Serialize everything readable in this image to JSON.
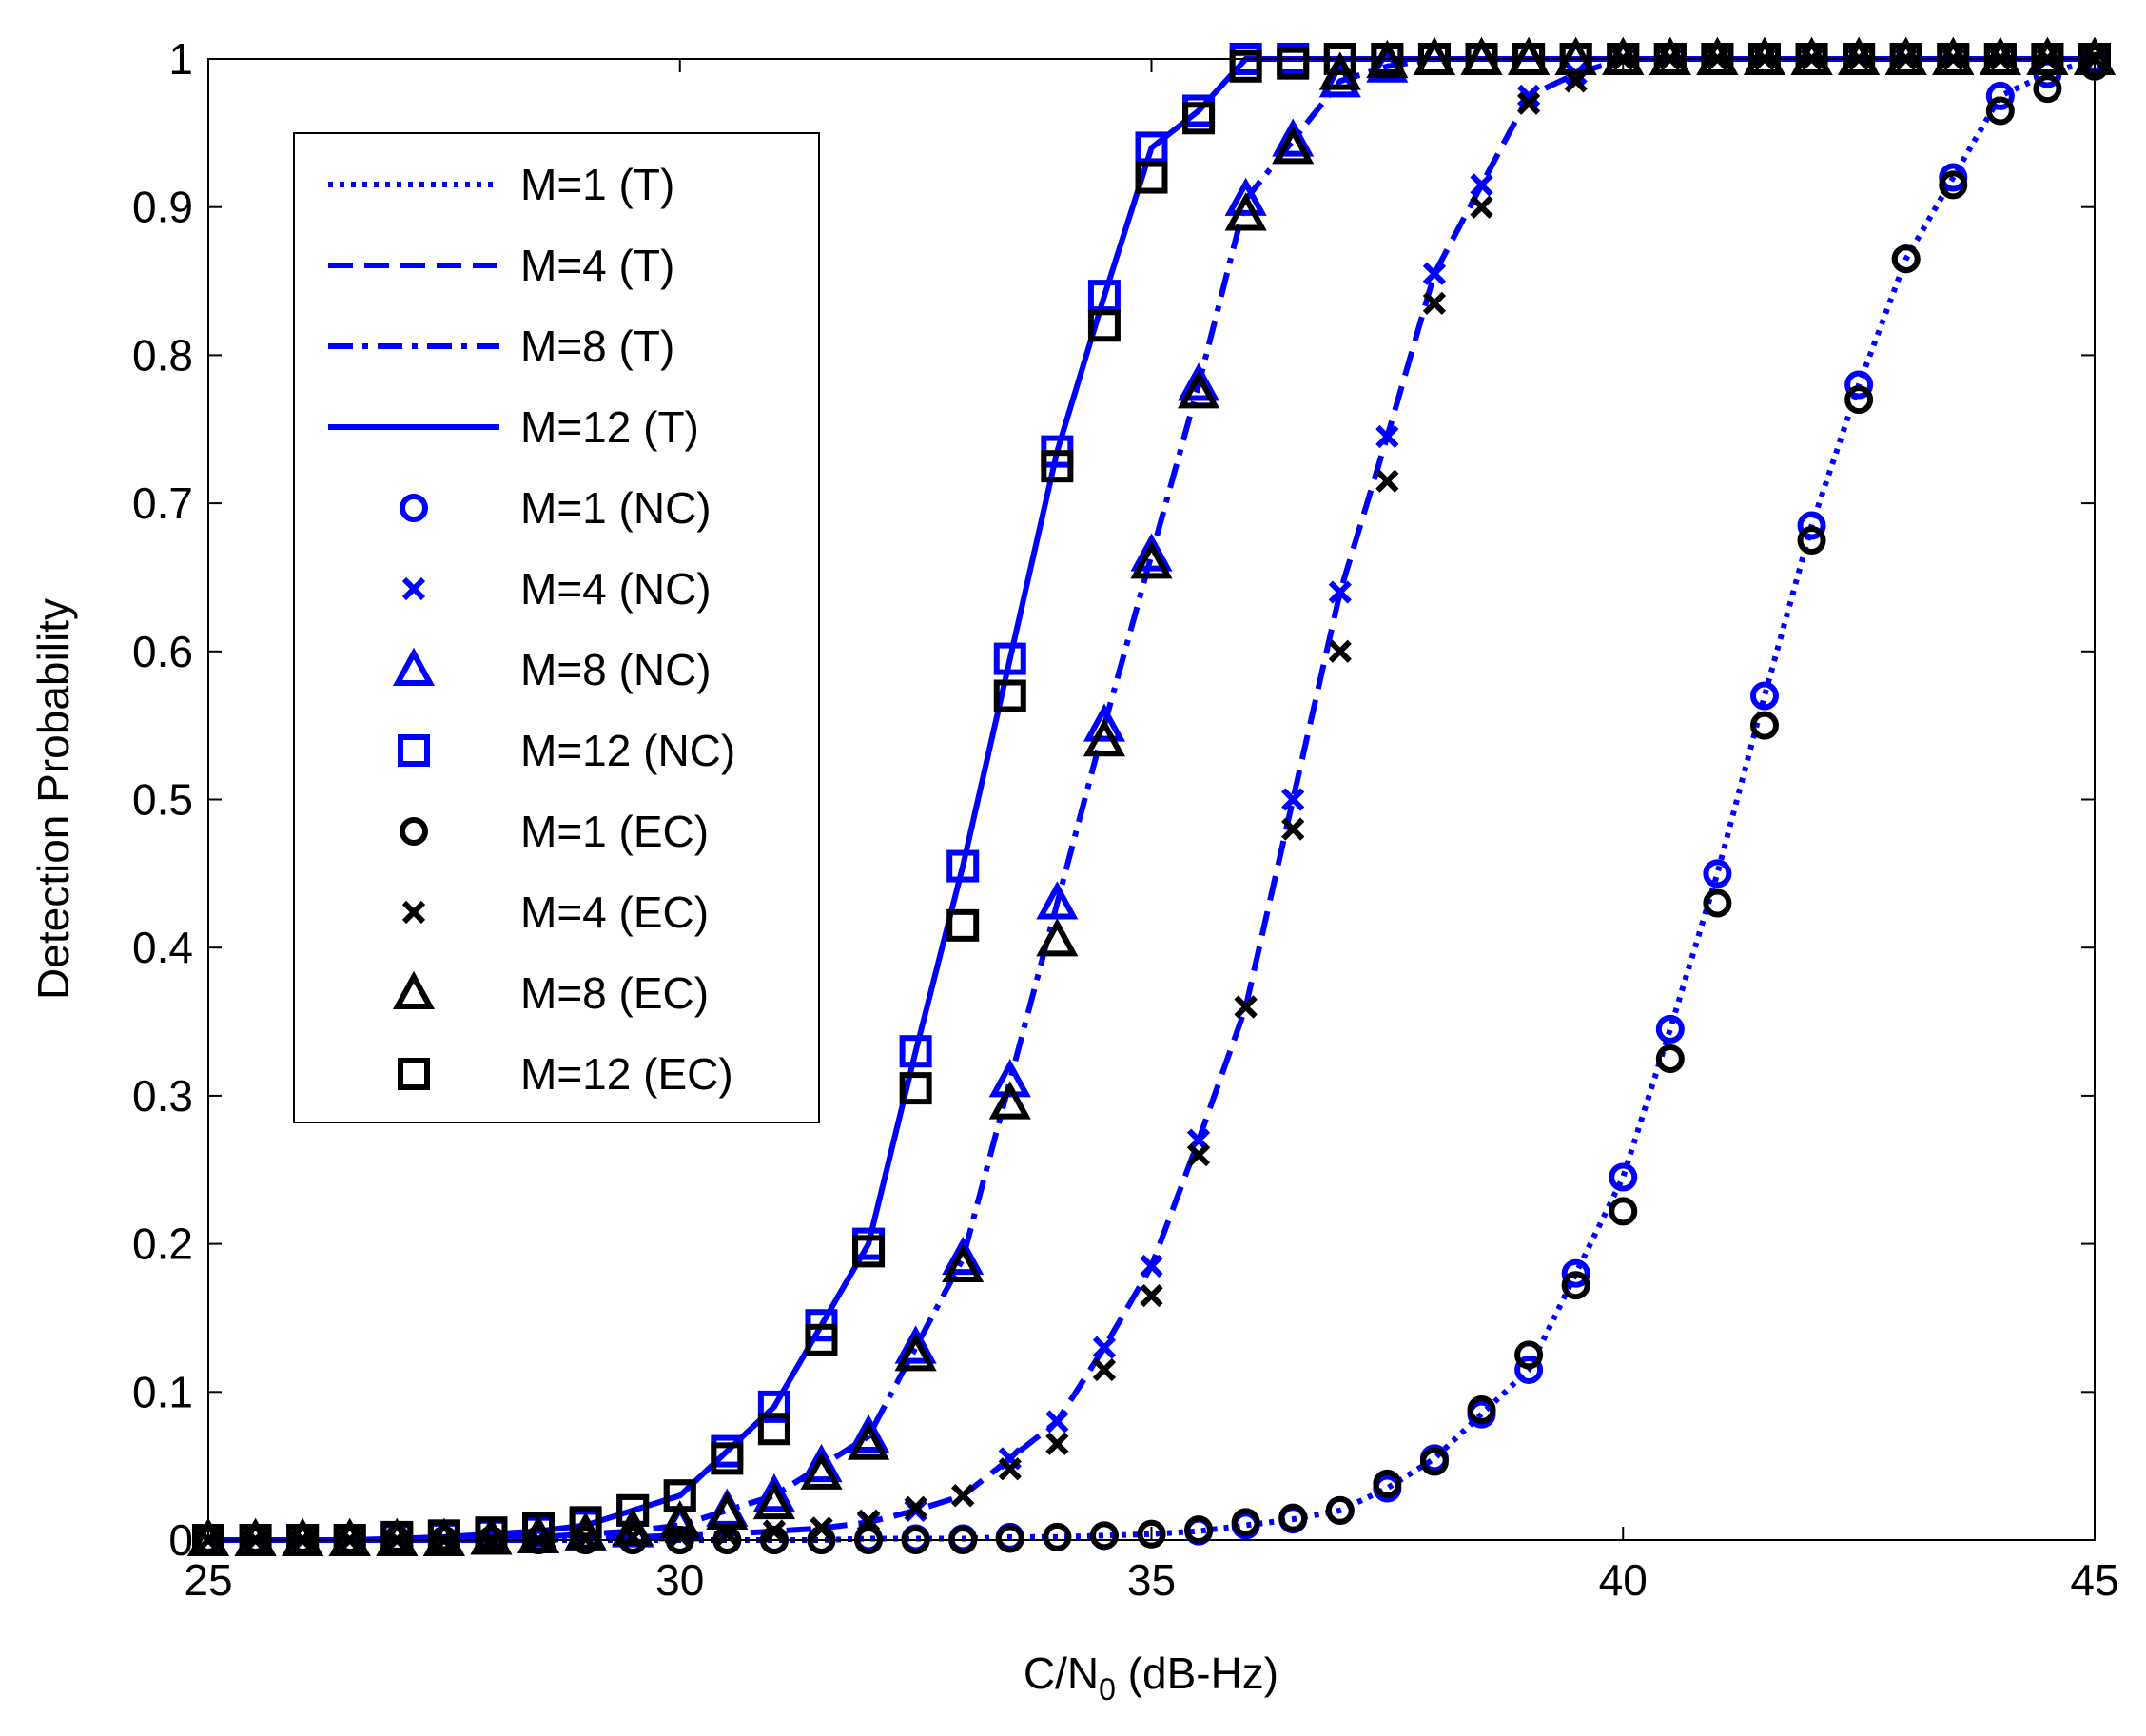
{
  "chart_data": {
    "type": "line",
    "xlabel": [
      "C/N",
      "0",
      " (dB-Hz)"
    ],
    "ylabel": "Detection Probability",
    "xlim": [
      25,
      45
    ],
    "ylim": [
      0,
      1
    ],
    "xticks": [
      25,
      30,
      35,
      40,
      45
    ],
    "yticks": [
      0,
      0.1,
      0.2,
      0.3,
      0.4,
      0.5,
      0.6,
      0.7,
      0.8,
      0.9,
      1
    ],
    "legend": "upper left",
    "x": [
      25,
      25.5,
      26,
      26.5,
      27,
      27.5,
      28,
      28.5,
      29,
      29.5,
      30,
      30.5,
      31,
      31.5,
      32,
      32.5,
      33,
      33.5,
      34,
      34.5,
      35,
      35.5,
      36,
      36.5,
      37,
      37.5,
      38,
      38.5,
      39,
      39.5,
      40,
      40.5,
      41,
      41.5,
      42,
      42.5,
      43,
      43.5,
      44,
      44.5,
      45
    ],
    "series": [
      {
        "name": "M=1 (T)",
        "color": "#0000ff",
        "linestyle": "dotted",
        "values": [
          0,
          0,
          0,
          0,
          0,
          0,
          0,
          0,
          0,
          0,
          0,
          0,
          0,
          0,
          0.001,
          0.001,
          0.001,
          0.002,
          0.002,
          0.003,
          0.004,
          0.006,
          0.01,
          0.014,
          0.02,
          0.035,
          0.055,
          0.085,
          0.115,
          0.18,
          0.245,
          0.345,
          0.45,
          0.57,
          0.685,
          0.78,
          0.865,
          0.92,
          0.975,
          0.99,
          1.0
        ]
      },
      {
        "name": "M=4 (T)",
        "color": "#0000ff",
        "linestyle": "dashed",
        "values": [
          0,
          0,
          0,
          0,
          0,
          0,
          0,
          0,
          0.001,
          0.002,
          0.003,
          0.004,
          0.006,
          0.008,
          0.012,
          0.02,
          0.03,
          0.055,
          0.08,
          0.13,
          0.185,
          0.27,
          0.36,
          0.5,
          0.64,
          0.745,
          0.855,
          0.915,
          0.975,
          0.99,
          1,
          1,
          1,
          1,
          1,
          1,
          1,
          1,
          1,
          1,
          1
        ]
      },
      {
        "name": "M=8 (T)",
        "color": "#0000ff",
        "linestyle": "dashdot",
        "values": [
          0,
          0,
          0,
          0,
          0,
          0,
          0.001,
          0.002,
          0.004,
          0.006,
          0.01,
          0.02,
          0.03,
          0.05,
          0.07,
          0.13,
          0.19,
          0.31,
          0.43,
          0.55,
          0.665,
          0.78,
          0.905,
          0.945,
          0.985,
          0.995,
          1,
          1,
          1,
          1,
          1,
          1,
          1,
          1,
          1,
          1,
          1,
          1,
          1,
          1,
          1
        ]
      },
      {
        "name": "M=12 (T)",
        "color": "#0000ff",
        "linestyle": "solid",
        "values": [
          0,
          0,
          0,
          0,
          0.001,
          0.002,
          0.004,
          0.006,
          0.01,
          0.02,
          0.03,
          0.06,
          0.09,
          0.145,
          0.2,
          0.33,
          0.455,
          0.595,
          0.735,
          0.84,
          0.94,
          0.965,
          1,
          1,
          1,
          1,
          1,
          1,
          1,
          1,
          1,
          1,
          1,
          1,
          1,
          1,
          1,
          1,
          1,
          1,
          1
        ]
      },
      {
        "name": "M=1 (NC)",
        "color": "#0000ff",
        "marker": "circle",
        "values": [
          0,
          0,
          0,
          0,
          0,
          0,
          0,
          0,
          0,
          0,
          0,
          0,
          0,
          0,
          0.001,
          0.001,
          0.001,
          0.002,
          0.002,
          0.003,
          0.004,
          0.006,
          0.01,
          0.014,
          0.02,
          0.035,
          0.055,
          0.085,
          0.115,
          0.18,
          0.245,
          0.345,
          0.45,
          0.57,
          0.685,
          0.78,
          0.865,
          0.92,
          0.975,
          0.99,
          1.0
        ]
      },
      {
        "name": "M=4 (NC)",
        "color": "#0000ff",
        "marker": "x",
        "values": [
          0,
          0,
          0,
          0,
          0,
          0,
          0,
          0,
          0.001,
          0.002,
          0.003,
          0.004,
          0.006,
          0.008,
          0.012,
          0.02,
          0.03,
          0.055,
          0.08,
          0.13,
          0.185,
          0.27,
          0.36,
          0.5,
          0.64,
          0.745,
          0.855,
          0.915,
          0.975,
          0.99,
          1,
          1,
          1,
          1,
          1,
          1,
          1,
          1,
          1,
          1,
          1
        ]
      },
      {
        "name": "M=8 (NC)",
        "color": "#0000ff",
        "marker": "triangle",
        "values": [
          0,
          0,
          0,
          0,
          0,
          0,
          0.001,
          0.002,
          0.004,
          0.006,
          0.01,
          0.02,
          0.03,
          0.05,
          0.07,
          0.13,
          0.19,
          0.31,
          0.43,
          0.55,
          0.665,
          0.78,
          0.905,
          0.945,
          0.985,
          0.995,
          1,
          1,
          1,
          1,
          1,
          1,
          1,
          1,
          1,
          1,
          1,
          1,
          1,
          1,
          1
        ]
      },
      {
        "name": "M=12 (NC)",
        "color": "#0000ff",
        "marker": "square",
        "values": [
          0,
          0,
          0,
          0,
          0.001,
          0.002,
          0.004,
          0.006,
          0.01,
          0.02,
          0.03,
          0.06,
          0.09,
          0.145,
          0.2,
          0.33,
          0.455,
          0.595,
          0.735,
          0.84,
          0.94,
          0.965,
          1,
          1,
          1,
          1,
          1,
          1,
          1,
          1,
          1,
          1,
          1,
          1,
          1,
          1,
          1,
          1,
          1,
          1,
          1
        ]
      },
      {
        "name": "M=1 (EC)",
        "color": "#000000",
        "marker": "circle",
        "values": [
          0,
          0,
          0,
          0,
          0,
          0,
          0,
          0,
          0,
          0,
          0,
          0,
          0,
          0,
          0,
          0,
          0,
          0.001,
          0.002,
          0.003,
          0.004,
          0.007,
          0.012,
          0.015,
          0.02,
          0.038,
          0.053,
          0.088,
          0.125,
          0.172,
          0.222,
          0.325,
          0.43,
          0.55,
          0.675,
          0.77,
          0.865,
          0.915,
          0.965,
          0.98,
          0.995
        ]
      },
      {
        "name": "M=4 (EC)",
        "color": "#000000",
        "marker": "x",
        "values": [
          0,
          0,
          0,
          0,
          0,
          0,
          0,
          0,
          0.001,
          0.002,
          0.003,
          0.004,
          0.006,
          0.008,
          0.013,
          0.022,
          0.03,
          0.048,
          0.065,
          0.115,
          0.165,
          0.26,
          0.36,
          0.48,
          0.6,
          0.715,
          0.835,
          0.9,
          0.97,
          0.985,
          1,
          1,
          1,
          1,
          1,
          1,
          1,
          1,
          1,
          1,
          1
        ]
      },
      {
        "name": "M=8 (EC)",
        "color": "#000000",
        "marker": "triangle",
        "values": [
          0,
          0,
          0,
          0,
          0,
          0,
          0.001,
          0.002,
          0.004,
          0.007,
          0.012,
          0.018,
          0.025,
          0.045,
          0.065,
          0.125,
          0.185,
          0.295,
          0.405,
          0.54,
          0.66,
          0.775,
          0.895,
          0.94,
          0.99,
          0.998,
          1,
          1,
          1,
          1,
          1,
          1,
          1,
          1,
          1,
          1,
          1,
          1,
          1,
          1,
          1
        ]
      },
      {
        "name": "M=12 (EC)",
        "color": "#000000",
        "marker": "square",
        "values": [
          0,
          0,
          0,
          0,
          0.002,
          0.003,
          0.005,
          0.008,
          0.012,
          0.02,
          0.03,
          0.055,
          0.075,
          0.135,
          0.195,
          0.305,
          0.415,
          0.57,
          0.725,
          0.82,
          0.92,
          0.96,
          0.995,
          0.997,
          1,
          1,
          1,
          1,
          1,
          1,
          1,
          1,
          1,
          1,
          1,
          1,
          1,
          1,
          1,
          1,
          1
        ]
      }
    ]
  }
}
